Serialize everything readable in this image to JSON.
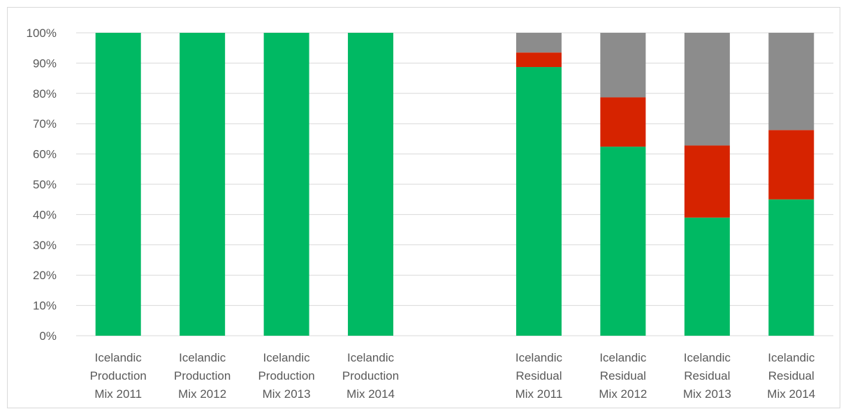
{
  "chart_data": {
    "type": "bar",
    "stacked": true,
    "title": "",
    "xlabel": "",
    "ylabel": "",
    "ylim": [
      0,
      100
    ],
    "yticks": [
      "0%",
      "10%",
      "20%",
      "30%",
      "40%",
      "50%",
      "60%",
      "70%",
      "80%",
      "90%",
      "100%"
    ],
    "grid": true,
    "legend": "none",
    "categories": [
      "Icelandic Production Mix 2011",
      "Icelandic Production Mix 2012",
      "Icelandic Production Mix 2013",
      "Icelandic Production Mix 2014",
      "",
      "Icelandic Residual Mix 2011",
      "Icelandic Residual Mix 2012",
      "Icelandic Residual Mix 2013",
      "Icelandic Residual Mix 2014"
    ],
    "category_label_lines": [
      [
        "Icelandic",
        "Production",
        "Mix 2011"
      ],
      [
        "Icelandic",
        "Production",
        "Mix 2012"
      ],
      [
        "Icelandic",
        "Production",
        "Mix 2013"
      ],
      [
        "Icelandic",
        "Production",
        "Mix 2014"
      ],
      [],
      [
        "Icelandic",
        "Residual",
        "Mix 2011"
      ],
      [
        "Icelandic",
        "Residual",
        "Mix 2012"
      ],
      [
        "Icelandic",
        "Residual",
        "Mix 2013"
      ],
      [
        "Icelandic",
        "Residual",
        "Mix 2014"
      ]
    ],
    "series": [
      {
        "color": "#00b963",
        "values": [
          100,
          100,
          100,
          100,
          null,
          88.7,
          62.4,
          39.0,
          45.0
        ]
      },
      {
        "color": "#d62300",
        "values": [
          0,
          0,
          0,
          0,
          null,
          4.8,
          16.3,
          23.8,
          22.9
        ]
      },
      {
        "color": "#8c8c8c",
        "values": [
          0,
          0,
          0,
          0,
          null,
          6.5,
          21.3,
          37.2,
          32.1
        ]
      }
    ]
  }
}
